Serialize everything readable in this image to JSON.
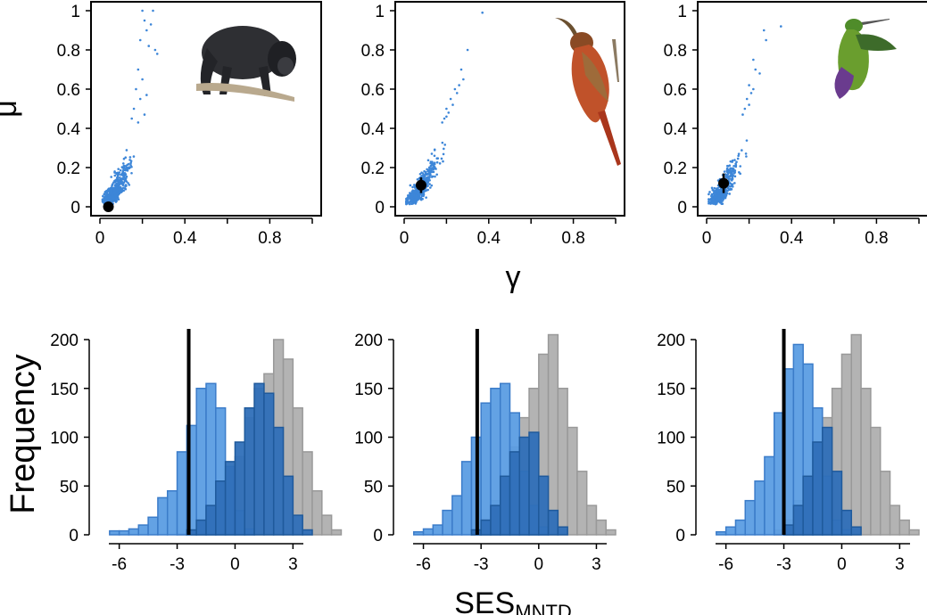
{
  "figure": {
    "top_ylabel": "μ",
    "top_xlabel": "γ",
    "bottom_ylabel": "Frequency",
    "bottom_xlabel": "SES",
    "bottom_xlabel_subscript": "MNTD"
  },
  "colors": {
    "scatter_points": "#3d86d8",
    "observed_point": "#000000",
    "hist_light_blue": "#5b9de3",
    "hist_dark_blue": "#2f6fb8",
    "hist_gray": "#b3b3b3",
    "observed_line": "#000000"
  },
  "icons": [
    "howler-monkey-illustration",
    "woodcreeper-illustration",
    "hummingbird-illustration"
  ],
  "chart_data": [
    {
      "type": "scatter",
      "panel": "monkey",
      "xlim": [
        0,
        1
      ],
      "ylim": [
        0,
        1
      ],
      "xticks": [
        "0",
        "0.4",
        "0.8"
      ],
      "yticks": [
        "0",
        "0.2",
        "0.4",
        "0.6",
        "0.8",
        "1"
      ],
      "x_hint": "γ",
      "y_hint": "μ",
      "cloud": {
        "n": 450,
        "y_median": 0.1
      },
      "points": [
        [
          0.2,
          1.0
        ],
        [
          0.21,
          0.95
        ],
        [
          0.22,
          0.9
        ],
        [
          0.19,
          0.85
        ],
        [
          0.23,
          0.82
        ],
        [
          0.25,
          1.0
        ],
        [
          0.24,
          0.93
        ],
        [
          0.26,
          0.8
        ],
        [
          0.27,
          0.78
        ],
        [
          0.18,
          0.7
        ],
        [
          0.2,
          0.65
        ],
        [
          0.17,
          0.6
        ],
        [
          0.22,
          0.57
        ],
        [
          0.19,
          0.55
        ],
        [
          0.16,
          0.5
        ],
        [
          0.21,
          0.47
        ],
        [
          0.15,
          0.45
        ],
        [
          0.18,
          0.43
        ]
      ],
      "observed": {
        "x": 0.04,
        "y": 0.0,
        "yerr": 0.01
      },
      "grid": false
    },
    {
      "type": "scatter",
      "panel": "woodcreeper",
      "xlim": [
        0,
        1
      ],
      "ylim": [
        0,
        1
      ],
      "xticks": [
        "0",
        "0.4",
        "0.8"
      ],
      "yticks": [
        "0",
        "0.2",
        "0.4",
        "0.6",
        "0.8",
        "1"
      ],
      "cloud": {
        "n": 450,
        "y_median": 0.1
      },
      "points": [
        [
          0.37,
          0.99
        ],
        [
          0.3,
          0.8
        ],
        [
          0.27,
          0.7
        ],
        [
          0.28,
          0.65
        ],
        [
          0.24,
          0.6
        ],
        [
          0.22,
          0.55
        ],
        [
          0.25,
          0.58
        ],
        [
          0.2,
          0.5
        ],
        [
          0.21,
          0.48
        ],
        [
          0.19,
          0.45
        ],
        [
          0.18,
          0.43
        ],
        [
          0.23,
          0.52
        ],
        [
          0.26,
          0.62
        ],
        [
          0.2,
          0.46
        ]
      ],
      "observed": {
        "x": 0.08,
        "y": 0.11,
        "yerr": 0.04
      },
      "grid": false
    },
    {
      "type": "scatter",
      "panel": "hummingbird",
      "xlim": [
        0,
        1
      ],
      "ylim": [
        0,
        1
      ],
      "xticks": [
        "0",
        "0.4",
        "0.8"
      ],
      "yticks": [
        "0",
        "0.2",
        "0.4",
        "0.6",
        "0.8",
        "1"
      ],
      "cloud": {
        "n": 450,
        "y_median": 0.1
      },
      "points": [
        [
          0.35,
          0.92
        ],
        [
          0.27,
          0.9
        ],
        [
          0.28,
          0.85
        ],
        [
          0.22,
          0.75
        ],
        [
          0.23,
          0.7
        ],
        [
          0.25,
          0.68
        ],
        [
          0.2,
          0.62
        ],
        [
          0.22,
          0.6
        ],
        [
          0.19,
          0.55
        ],
        [
          0.18,
          0.5
        ],
        [
          0.21,
          0.58
        ],
        [
          0.17,
          0.47
        ],
        [
          0.2,
          0.52
        ]
      ],
      "observed": {
        "x": 0.08,
        "y": 0.12,
        "yerr": 0.05
      },
      "grid": false
    },
    {
      "type": "histogram",
      "panel": "monkey",
      "xlim": [
        -7,
        4
      ],
      "ylim": [
        0,
        200
      ],
      "xticks": [
        "-6",
        "-3",
        "0",
        "3"
      ],
      "yticks": [
        "0",
        "50",
        "100",
        "150",
        "200"
      ],
      "bin_width": 0.5,
      "observed_line": -2.4,
      "gray": {
        "start": -3.0,
        "counts": [
          1,
          3,
          6,
          13,
          24,
          45,
          80,
          120,
          150,
          165,
          200,
          180,
          130,
          85,
          45,
          20,
          5
        ]
      },
      "light": {
        "start": -6.5,
        "counts": [
          4,
          4,
          6,
          10,
          18,
          38,
          45,
          85,
          112,
          150,
          155,
          130,
          70,
          25,
          6
        ]
      },
      "dark": {
        "start": -2.5,
        "counts": [
          5,
          15,
          30,
          55,
          75,
          95,
          130,
          155,
          145,
          110,
          60,
          20,
          5
        ]
      }
    },
    {
      "type": "histogram",
      "panel": "woodcreeper",
      "xlim": [
        -7,
        4
      ],
      "ylim": [
        0,
        200
      ],
      "xticks": [
        "-6",
        "-3",
        "0",
        "3"
      ],
      "yticks": [
        "0",
        "50",
        "100",
        "150",
        "200"
      ],
      "bin_width": 0.5,
      "observed_line": -3.2,
      "gray": {
        "start": -3.5,
        "counts": [
          5,
          15,
          35,
          60,
          90,
          120,
          150,
          185,
          205,
          150,
          110,
          65,
          30,
          15,
          5
        ]
      },
      "light": {
        "start": -6.5,
        "counts": [
          3,
          6,
          10,
          25,
          40,
          75,
          100,
          135,
          150,
          155,
          125,
          65,
          30,
          8
        ]
      },
      "dark": {
        "start": -3.5,
        "counts": [
          5,
          15,
          30,
          60,
          85,
          100,
          105,
          60,
          25,
          8
        ]
      }
    },
    {
      "type": "histogram",
      "panel": "hummingbird",
      "xlim": [
        -7,
        4
      ],
      "ylim": [
        0,
        200
      ],
      "xticks": [
        "-6",
        "-3",
        "0",
        "3"
      ],
      "yticks": [
        "0",
        "50",
        "100",
        "150",
        "200"
      ],
      "bin_width": 0.5,
      "observed_line": -3.0,
      "gray": {
        "start": -3.5,
        "counts": [
          5,
          15,
          35,
          60,
          90,
          120,
          150,
          185,
          205,
          150,
          110,
          65,
          30,
          15,
          5
        ]
      },
      "light": {
        "start": -6.5,
        "counts": [
          3,
          8,
          15,
          35,
          55,
          80,
          125,
          170,
          195,
          175,
          130,
          60,
          15,
          5
        ]
      },
      "dark": {
        "start": -3.0,
        "counts": [
          10,
          30,
          60,
          95,
          110,
          65,
          25,
          8
        ]
      }
    }
  ]
}
